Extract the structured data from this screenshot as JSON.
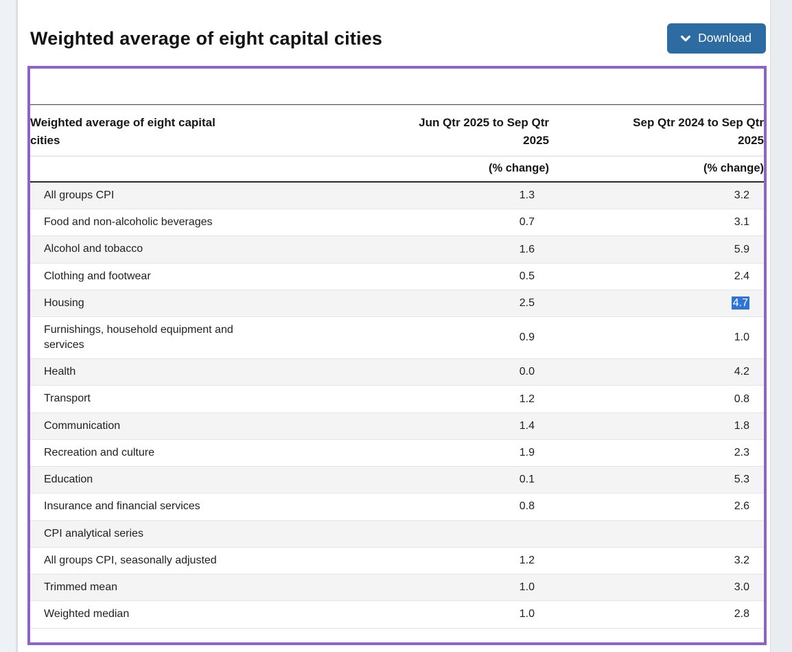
{
  "page": {
    "title": "Weighted average of eight capital cities"
  },
  "toolbar": {
    "download_label": "Download",
    "download_icon": "chevron-down-icon"
  },
  "colors": {
    "accent_purple": "#8d63c9",
    "button_blue": "#2d6ca2",
    "selection_highlight_blue": "#2e74d6",
    "row_stripe_gray": "#f4f4f4"
  },
  "table": {
    "header": {
      "label": "Weighted average of eight capital cities",
      "col2": "Jun Qtr 2025 to Sep Qtr 2025",
      "col3": "Sep Qtr 2024 to Sep Qtr 2025",
      "col2_sub": "(% change)",
      "col3_sub": "(% change)"
    },
    "rows": [
      {
        "label": "All groups CPI",
        "q": "1.3",
        "y": "3.2"
      },
      {
        "label": "Food and non-alcoholic beverages",
        "q": "0.7",
        "y": "3.1"
      },
      {
        "label": "Alcohol and tobacco",
        "q": "1.6",
        "y": "5.9"
      },
      {
        "label": "Clothing and footwear",
        "q": "0.5",
        "y": "2.4"
      },
      {
        "label": "Housing",
        "q": "2.5",
        "y": "4.7",
        "y_selected": true
      },
      {
        "label": "Furnishings, household equipment and services",
        "q": "0.9",
        "y": "1.0"
      },
      {
        "label": "Health",
        "q": "0.0",
        "y": "4.2"
      },
      {
        "label": "Transport",
        "q": "1.2",
        "y": "0.8"
      },
      {
        "label": "Communication",
        "q": "1.4",
        "y": "1.8"
      },
      {
        "label": "Recreation and culture",
        "q": "1.9",
        "y": "2.3"
      },
      {
        "label": "Education",
        "q": "0.1",
        "y": "5.3"
      },
      {
        "label": "Insurance and financial services",
        "q": "0.8",
        "y": "2.6"
      },
      {
        "label": "CPI analytical series",
        "q": "",
        "y": ""
      },
      {
        "label": "All groups CPI, seasonally adjusted",
        "q": "1.2",
        "y": "3.2"
      },
      {
        "label": "Trimmed mean",
        "q": "1.0",
        "y": "3.0"
      },
      {
        "label": "Weighted median",
        "q": "1.0",
        "y": "2.8"
      }
    ]
  }
}
